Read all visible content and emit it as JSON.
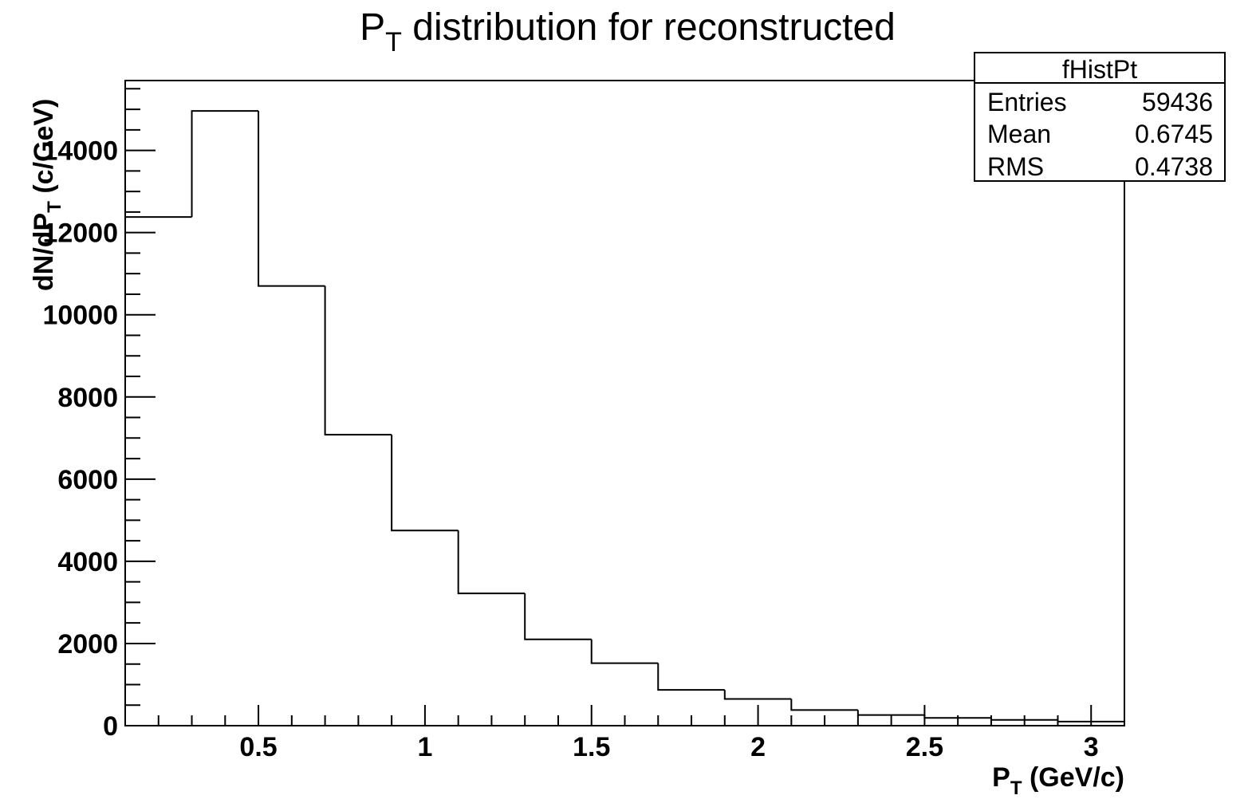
{
  "chart_data": {
    "type": "histogram",
    "title": {
      "main": "P",
      "sub": "T",
      "rest": " distribution for reconstructed"
    },
    "xlabel": {
      "main": "P",
      "sub": "T",
      "rest": " (GeV/c)"
    },
    "ylabel": {
      "prefix": "dN/dP",
      "sub": "T",
      "rest": " (c/GeV)"
    },
    "xlim": [
      0.1,
      3.1
    ],
    "ylim": [
      0,
      15700
    ],
    "x_ticks": [
      0.5,
      1,
      1.5,
      2,
      2.5,
      3
    ],
    "x_tick_labels": [
      "0.5",
      "1",
      "1.5",
      "2",
      "2.5",
      "3"
    ],
    "y_ticks": [
      0,
      2000,
      4000,
      6000,
      8000,
      10000,
      12000,
      14000
    ],
    "y_tick_labels": [
      "0",
      "2000",
      "4000",
      "6000",
      "8000",
      "10000",
      "12000",
      "14000"
    ],
    "bin_edges": [
      0.1,
      0.3,
      0.5,
      0.7,
      0.9,
      1.1,
      1.3,
      1.5,
      1.7,
      1.9,
      2.1,
      2.3,
      2.5,
      2.7,
      2.9,
      3.1
    ],
    "values": [
      12380,
      14960,
      10700,
      7080,
      4750,
      3220,
      2100,
      1520,
      870,
      650,
      380,
      260,
      190,
      140,
      100
    ],
    "line_color": "#000000",
    "stats_box": {
      "title": "fHistPt",
      "rows": [
        {
          "label": "Entries",
          "value": "59436"
        },
        {
          "label": "Mean",
          "value": "0.6745"
        },
        {
          "label": "RMS",
          "value": "0.4738"
        }
      ]
    }
  }
}
